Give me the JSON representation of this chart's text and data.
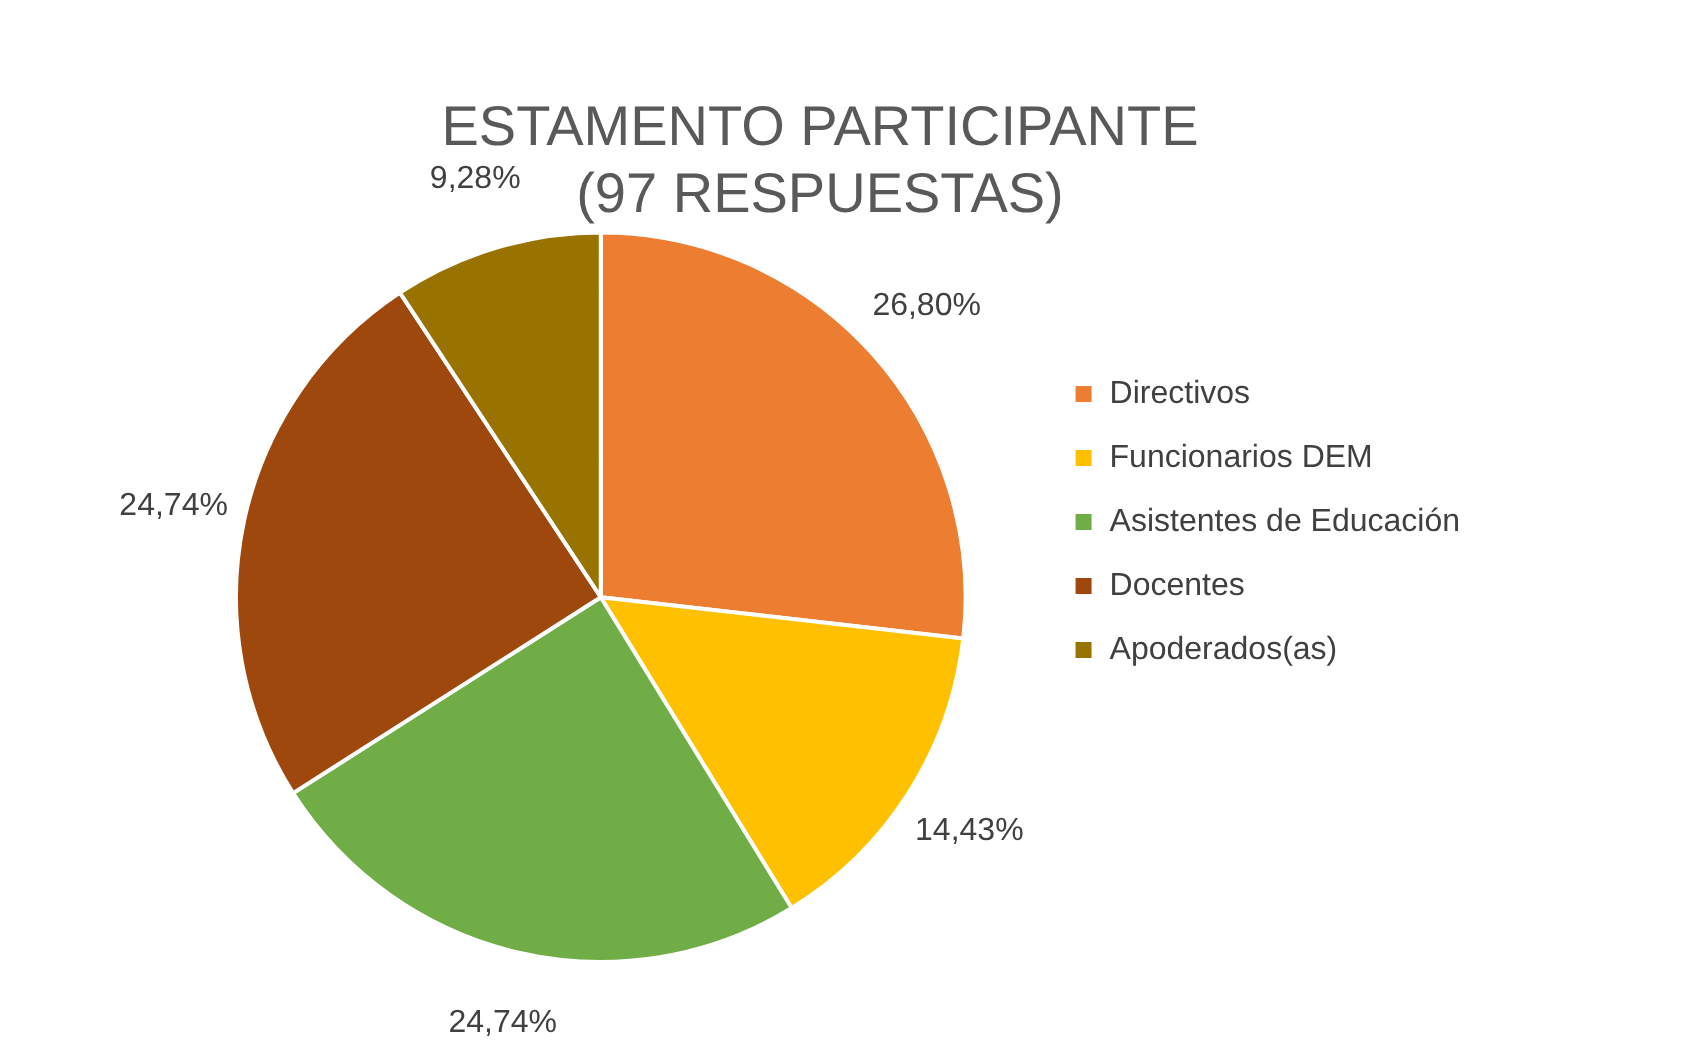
{
  "chart_data": {
    "type": "pie",
    "title": "ESTAMENTO PARTICIPANTE\n(97 RESPUESTAS)",
    "categories": [
      "Directivos",
      "Funcionarios DEM",
      "Asistentes de Educación",
      "Docentes",
      "Apoderados(as)"
    ],
    "values": [
      26.8,
      14.43,
      24.74,
      24.74,
      9.28
    ],
    "colors": [
      "#ed7d31",
      "#ffc000",
      "#70ad47",
      "#9e480e",
      "#997300"
    ],
    "value_labels": [
      "26,80%",
      "14,43%",
      "24,74%",
      "24,74%",
      "9,28%"
    ],
    "legend": "right"
  }
}
